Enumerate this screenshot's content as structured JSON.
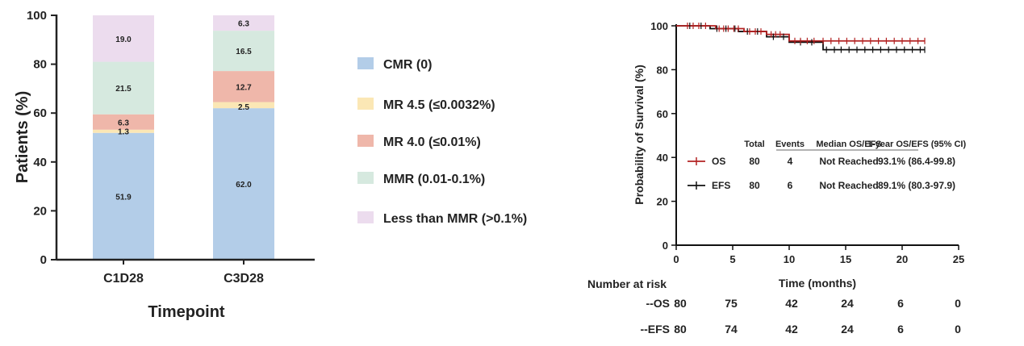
{
  "chart_data": [
    {
      "type": "bar",
      "stacked": true,
      "xlabel": "Timepoint",
      "ylabel": "Patients (%)",
      "ylim": [
        0,
        100
      ],
      "yticks": [
        "0",
        "20",
        "40",
        "60",
        "80",
        "100"
      ],
      "categories": [
        "C1D28",
        "C3D28"
      ],
      "series": [
        {
          "name": "CMR (0)",
          "color": "#b3cde8",
          "values": [
            51.9,
            62.0
          ],
          "labels": [
            "51.9",
            "62.0"
          ]
        },
        {
          "name": "MR 4.5 (≤0.0032%)",
          "color": "#fbe7b5",
          "values": [
            1.3,
            2.5
          ],
          "labels": [
            "1.3",
            "2.5"
          ]
        },
        {
          "name": "MR 4.0 (≤0.01%)",
          "color": "#efb7aa",
          "values": [
            6.3,
            12.7
          ],
          "labels": [
            "6.3",
            "12.7"
          ]
        },
        {
          "name": "MMR (0.01-0.1%)",
          "color": "#d6e9df",
          "values": [
            21.5,
            16.5
          ],
          "labels": [
            "21.5",
            "16.5"
          ]
        },
        {
          "name": "Less than MMR (>0.1%)",
          "color": "#ecdcee",
          "values": [
            19.0,
            6.3
          ],
          "labels": [
            "19.0",
            "6.3"
          ]
        }
      ],
      "legend_position": "right"
    },
    {
      "type": "line",
      "subtype": "kaplan-meier",
      "xlabel": "Time (months)",
      "ylabel": "Probability of Survival (%)",
      "xlim": [
        0,
        25
      ],
      "ylim": [
        0,
        100
      ],
      "xticks": [
        "0",
        "5",
        "10",
        "15",
        "20",
        "25"
      ],
      "yticks": [
        "0",
        "20",
        "40",
        "60",
        "80",
        "100"
      ],
      "series": [
        {
          "name": "OS",
          "color": "#b22222",
          "x": [
            0,
            3.5,
            6,
            8,
            10,
            22
          ],
          "y": [
            100,
            98.7,
            97.4,
            96.1,
            93.1,
            93.1
          ]
        },
        {
          "name": "EFS",
          "color": "#111111",
          "x": [
            0,
            3,
            5.5,
            8,
            10,
            13,
            22
          ],
          "y": [
            100,
            98.7,
            97.4,
            95.0,
            92.5,
            89.1,
            89.1
          ]
        }
      ],
      "censor_ticks": {
        "OS": [
          1,
          1.5,
          2,
          2.6,
          3.8,
          4.2,
          4.6,
          5.1,
          5.5,
          6.5,
          7,
          7.5,
          8.4,
          8.8,
          9.2,
          10.5,
          11,
          11.6,
          12.2,
          13,
          13.7,
          14.4,
          15.1,
          15.8,
          16.5,
          17.2,
          17.9,
          18.6,
          19.3,
          20,
          20.7,
          21.4,
          22
        ],
        "EFS": [
          1.2,
          2.2,
          3.6,
          4.4,
          5.2,
          6.3,
          7.2,
          8.6,
          9.5,
          11,
          12,
          13.3,
          14,
          14.6,
          15.3,
          16,
          16.7,
          17.4,
          18.1,
          18.8,
          19.5,
          20.2,
          20.9,
          21.6,
          22
        ]
      },
      "summary_table": {
        "headers": [
          "Total",
          "Events",
          "Median OS/EFS",
          "1-year OS/EFS (95% CI)"
        ],
        "rows": [
          {
            "name": "OS",
            "total": "80",
            "events": "4",
            "median": "Not Reached",
            "one_year": "93.1% (86.4-99.8)"
          },
          {
            "name": "EFS",
            "total": "80",
            "events": "6",
            "median": "Not Reached",
            "one_year": "89.1% (80.3-97.9)"
          }
        ]
      },
      "risk_table": {
        "title": "Number at risk",
        "rows": [
          {
            "label": "--OS",
            "values": [
              "80",
              "75",
              "42",
              "24",
              "6",
              "0"
            ]
          },
          {
            "label": "--EFS",
            "values": [
              "80",
              "74",
              "42",
              "24",
              "6",
              "0"
            ]
          }
        ]
      }
    }
  ]
}
